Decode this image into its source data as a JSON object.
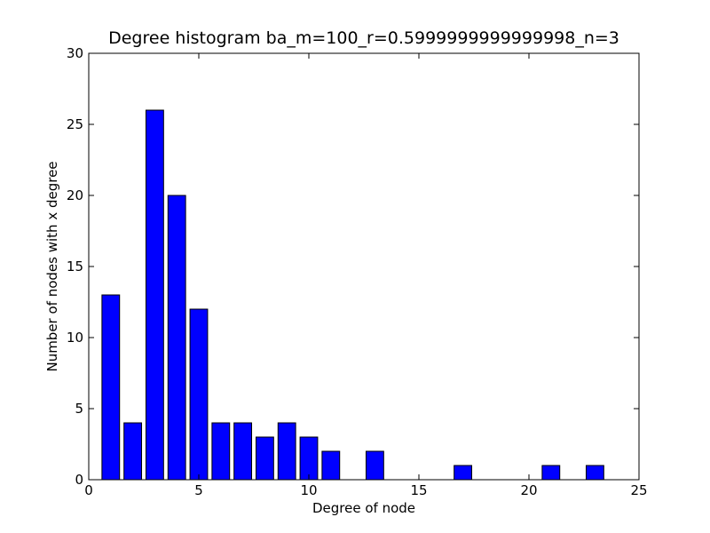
{
  "chart_data": {
    "type": "bar",
    "title": "Degree histogram ba_m=100_r=0.5999999999999998_n=3",
    "xlabel": "Degree of node",
    "ylabel": "Number of nodes with x degree",
    "xlim": [
      0,
      25
    ],
    "ylim": [
      0,
      30
    ],
    "xticks": [
      0,
      5,
      10,
      15,
      20,
      25
    ],
    "yticks": [
      0,
      5,
      10,
      15,
      20,
      25,
      30
    ],
    "bar_width": 0.8,
    "bar_color": "#0000ff",
    "edge_color": "#000000",
    "grid": false,
    "categories": [
      1,
      2,
      3,
      4,
      5,
      6,
      7,
      8,
      9,
      10,
      11,
      12,
      13,
      14,
      15,
      16,
      17,
      18,
      19,
      20,
      21,
      22,
      23
    ],
    "values": [
      13,
      4,
      26,
      20,
      12,
      4,
      4,
      3,
      4,
      3,
      2,
      0,
      2,
      0,
      0,
      0,
      1,
      0,
      0,
      0,
      1,
      0,
      1
    ]
  }
}
